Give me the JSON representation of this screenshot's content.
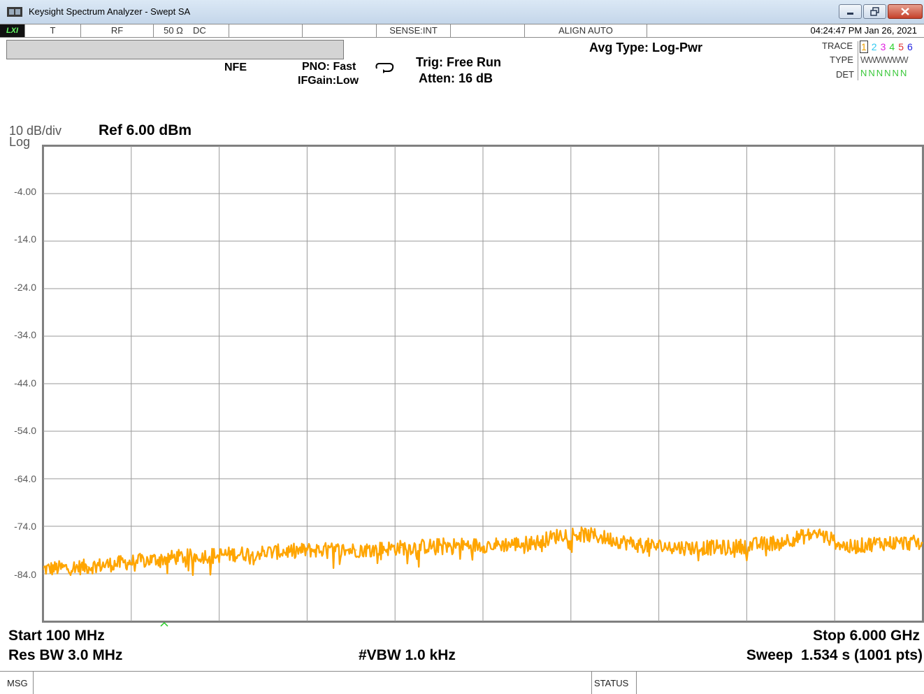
{
  "window": {
    "title": "Keysight Spectrum Analyzer - Swept SA"
  },
  "status_bar": {
    "lxi": "LXI",
    "t": "T",
    "rf": "RF",
    "impedance": "50 Ω",
    "coupling": "DC",
    "sense": "SENSE:INT",
    "align": "ALIGN AUTO",
    "datetime": "04:24:47 PM Jan 26, 2021"
  },
  "settings": {
    "nfe": "NFE",
    "pno": "PNO: Fast",
    "ifgain": "IFGain:Low",
    "trig": "Trig: Free Run",
    "atten": "Atten: 16 dB",
    "avg_type": "Avg Type: Log-Pwr"
  },
  "trace_panel": {
    "trace_label": "TRACE",
    "type_label": "TYPE",
    "det_label": "DET",
    "trace_nums": [
      "1",
      "2",
      "3",
      "4",
      "5",
      "6"
    ],
    "trace_colors": [
      "#f0a000",
      "#30c8f0",
      "#e020e0",
      "#30d030",
      "#e03030",
      "#2020e0"
    ],
    "type_value": "WWWWWW",
    "det_value": "NNNNNN"
  },
  "scale": {
    "per_div": "10 dB/div",
    "mode": "Log",
    "ref": "Ref 6.00 dBm"
  },
  "footer": {
    "start": "Start 100 MHz",
    "stop": "Stop 6.000 GHz",
    "res_bw": "Res BW 3.0 MHz",
    "vbw": "#VBW 1.0 kHz",
    "sweep": "Sweep  1.534 s (1001 pts)",
    "msg": "MSG",
    "status": "STATUS"
  },
  "chart_data": {
    "type": "line",
    "xlabel": "",
    "ylabel": "",
    "x_range_mhz": [
      100,
      6000
    ],
    "ylim": [
      -94,
      6
    ],
    "y_tick_labels": [
      "-4.00",
      "-14.0",
      "-24.0",
      "-34.0",
      "-44.0",
      "-54.0",
      "-64.0",
      "-74.0",
      "-84.0"
    ],
    "y_ticks": [
      -4,
      -14,
      -24,
      -34,
      -44,
      -54,
      -64,
      -74,
      -84
    ],
    "grid": true,
    "trace_color": "#ffa500",
    "series": [
      {
        "x_mhz": [
          100,
          400,
          700,
          1000,
          1300,
          1600,
          1900,
          2200,
          2500,
          2800,
          3100,
          3400,
          3600,
          3800,
          4100,
          4400,
          4700,
          5000,
          5300,
          5500,
          5700,
          6000
        ],
        "y_dbm": [
          -83,
          -82.5,
          -81.5,
          -80.5,
          -80,
          -79.5,
          -79,
          -79,
          -78.5,
          -78,
          -78,
          -77.5,
          -75.5,
          -76,
          -78,
          -78.5,
          -78.5,
          -77.5,
          -75.5,
          -78.5,
          -77.5,
          -77.5
        ]
      }
    ]
  }
}
